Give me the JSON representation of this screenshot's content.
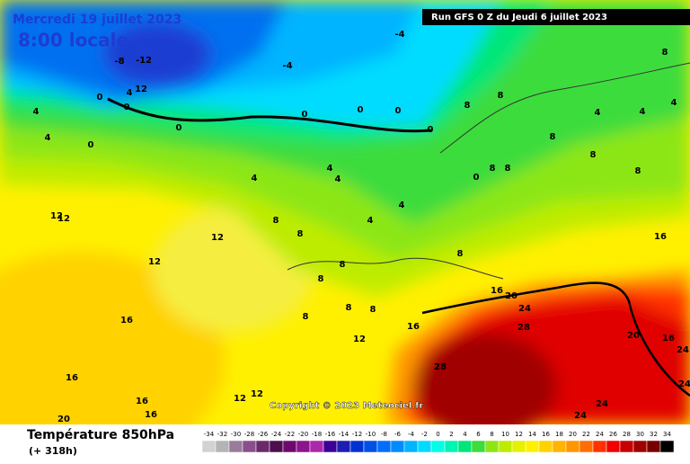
{
  "header": {
    "date": "Mercredi 19 juillet 2023",
    "time": "8:00 locale",
    "run": "Run GFS 0 Z du Jeudi 6 juillet 2023"
  },
  "copyright": "Copyright © 2023 Meteociel.fr",
  "footer": {
    "title": "Température 850hPa",
    "lead": "(+ 318h)"
  },
  "map_labels": [
    -4,
    -8,
    -12,
    -4,
    12,
    4,
    0,
    0,
    4,
    4,
    0,
    0,
    0,
    0,
    0,
    0,
    8,
    8,
    8,
    4,
    4,
    4,
    8,
    8,
    8,
    4,
    4,
    4,
    0,
    8,
    8,
    4,
    4,
    8,
    8,
    12,
    12,
    12,
    12,
    8,
    8,
    8,
    16,
    16,
    20,
    24,
    8,
    8,
    8,
    16,
    12,
    28,
    20,
    16,
    24,
    16,
    28,
    16,
    16,
    16,
    12,
    12,
    20,
    24,
    24,
    24
  ],
  "legend": {
    "values": [
      -34,
      -32,
      -30,
      -28,
      -26,
      -24,
      -22,
      -20,
      -18,
      -16,
      -14,
      -12,
      -10,
      -8,
      -6,
      -4,
      -2,
      0,
      2,
      4,
      6,
      8,
      10,
      12,
      14,
      16,
      18,
      20,
      22,
      24,
      26,
      28,
      30,
      32,
      34
    ],
    "colors": [
      "#d2d2d2",
      "#b4b4b4",
      "#9a7b9a",
      "#8a4f8a",
      "#6a2a6a",
      "#4e0f4e",
      "#6e0a6e",
      "#8c148c",
      "#aa28aa",
      "#3c0096",
      "#1e1eb4",
      "#0032d2",
      "#0050e6",
      "#006efa",
      "#008cff",
      "#00b4ff",
      "#00dcff",
      "#00ffe6",
      "#00f5b4",
      "#00e678",
      "#3cdc3c",
      "#8ce614",
      "#beec00",
      "#e6f000",
      "#fff000",
      "#ffd200",
      "#ffb400",
      "#ff9600",
      "#ff6e00",
      "#ff3200",
      "#f00000",
      "#c80000",
      "#a00000",
      "#780000",
      "#000000"
    ]
  }
}
